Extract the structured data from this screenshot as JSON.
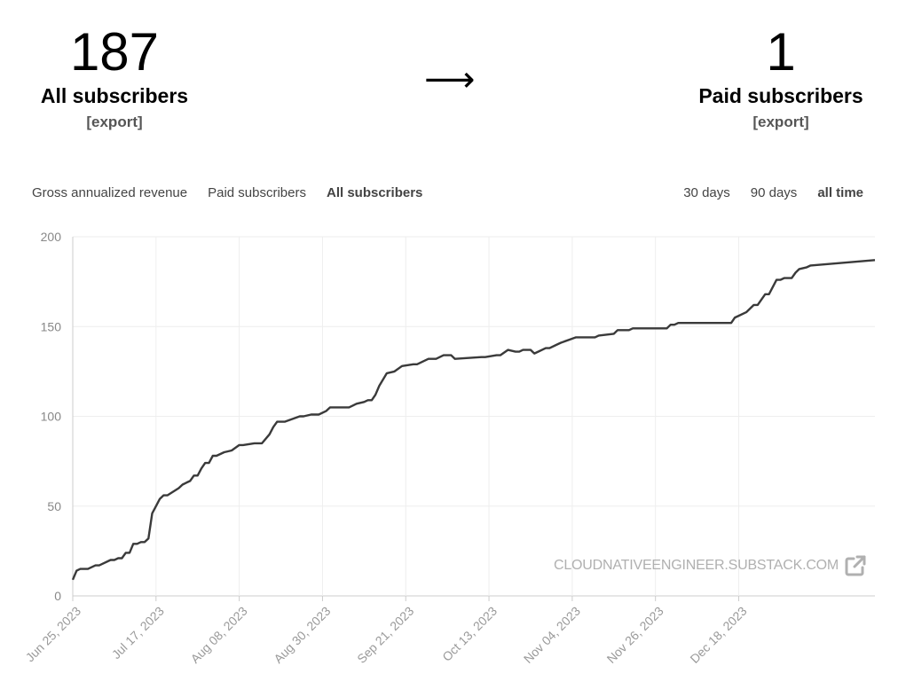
{
  "summary": {
    "all_count": "187",
    "all_label": "All subscribers",
    "paid_count": "1",
    "paid_label": "Paid subscribers",
    "export_label": "[export]",
    "arrow": "⟶"
  },
  "metric_tabs": [
    "Gross annualized revenue",
    "Paid subscribers",
    "All subscribers"
  ],
  "metric_active": "All subscribers",
  "range_tabs": [
    "30 days",
    "90 days",
    "all time"
  ],
  "range_active": "all time",
  "watermark": {
    "text": "CLOUDNATIVEENGINEER.SUBSTACK.COM",
    "icon": "external-link-icon"
  },
  "colors": {
    "line": "#3a3a3a",
    "grid": "#eeeeee",
    "watermark": "#b0b0b0"
  },
  "chart_data": {
    "type": "line",
    "title": "",
    "xlabel": "",
    "ylabel": "",
    "ylim": [
      0,
      200
    ],
    "yticks": [
      0,
      50,
      100,
      150,
      200
    ],
    "xlim": [
      "2023-06-25",
      "2024-01-23"
    ],
    "xticks": [
      "Jun 25, 2023",
      "Jul 17, 2023",
      "Aug 08, 2023",
      "Aug 30, 2023",
      "Sep 21, 2023",
      "Oct 13, 2023",
      "Nov 04, 2023",
      "Nov 26, 2023",
      "Dec 18, 2023"
    ],
    "grid": true,
    "series": [
      {
        "name": "",
        "x": [
          "2023-06-25",
          "2023-06-26",
          "2023-06-27",
          "2023-06-29",
          "2023-07-01",
          "2023-07-02",
          "2023-07-05",
          "2023-07-06",
          "2023-07-07",
          "2023-07-08",
          "2023-07-09",
          "2023-07-10",
          "2023-07-11",
          "2023-07-12",
          "2023-07-13",
          "2023-07-14",
          "2023-07-15",
          "2023-07-16",
          "2023-07-17",
          "2023-07-18",
          "2023-07-19",
          "2023-07-20",
          "2023-07-23",
          "2023-07-24",
          "2023-07-25",
          "2023-07-26",
          "2023-07-27",
          "2023-07-28",
          "2023-07-29",
          "2023-07-30",
          "2023-07-31",
          "2023-08-01",
          "2023-08-02",
          "2023-08-04",
          "2023-08-06",
          "2023-08-08",
          "2023-08-09",
          "2023-08-12",
          "2023-08-13",
          "2023-08-14",
          "2023-08-16",
          "2023-08-17",
          "2023-08-18",
          "2023-08-20",
          "2023-08-24",
          "2023-08-25",
          "2023-08-27",
          "2023-08-29",
          "2023-08-31",
          "2023-09-01",
          "2023-09-02",
          "2023-09-06",
          "2023-09-07",
          "2023-09-08",
          "2023-09-10",
          "2023-09-11",
          "2023-09-12",
          "2023-09-13",
          "2023-09-14",
          "2023-09-16",
          "2023-09-18",
          "2023-09-20",
          "2023-09-23",
          "2023-09-24",
          "2023-09-27",
          "2023-09-29",
          "2023-10-01",
          "2023-10-03",
          "2023-10-04",
          "2023-10-11",
          "2023-10-12",
          "2023-10-15",
          "2023-10-16",
          "2023-10-18",
          "2023-10-20",
          "2023-10-21",
          "2023-10-22",
          "2023-10-24",
          "2023-10-25",
          "2023-10-26",
          "2023-10-28",
          "2023-10-29",
          "2023-10-31",
          "2023-11-01",
          "2023-11-05",
          "2023-11-10",
          "2023-11-11",
          "2023-11-15",
          "2023-11-16",
          "2023-11-19",
          "2023-11-20",
          "2023-11-29",
          "2023-11-30",
          "2023-12-01",
          "2023-12-02",
          "2023-12-16",
          "2023-12-17",
          "2023-12-18",
          "2023-12-20",
          "2023-12-22",
          "2023-12-23",
          "2023-12-25",
          "2023-12-26",
          "2023-12-28",
          "2023-12-29",
          "2023-12-30",
          "2024-01-01",
          "2024-01-02",
          "2024-01-03",
          "2024-01-05",
          "2024-01-06",
          "2024-01-23"
        ],
        "y": [
          9,
          14,
          15,
          15,
          17,
          17,
          20,
          20,
          21,
          21,
          24,
          24,
          29,
          29,
          30,
          30,
          32,
          46,
          50,
          54,
          56,
          56,
          60,
          62,
          63,
          64,
          67,
          67,
          71,
          74,
          74,
          78,
          78,
          80,
          81,
          84,
          84,
          85,
          85,
          85,
          90,
          94,
          97,
          97,
          100,
          100,
          101,
          101,
          103,
          105,
          105,
          105,
          106,
          107,
          108,
          109,
          109,
          112,
          117,
          124,
          125,
          128,
          129,
          129,
          132,
          132,
          134,
          134,
          132,
          133,
          133,
          134,
          134,
          137,
          136,
          136,
          137,
          137,
          135,
          136,
          138,
          138,
          140,
          141,
          144,
          144,
          145,
          146,
          148,
          148,
          149,
          149,
          151,
          151,
          152,
          152,
          155,
          156,
          158,
          162,
          162,
          168,
          168,
          176,
          176,
          177,
          177,
          180,
          182,
          183,
          184,
          187
        ]
      }
    ]
  }
}
